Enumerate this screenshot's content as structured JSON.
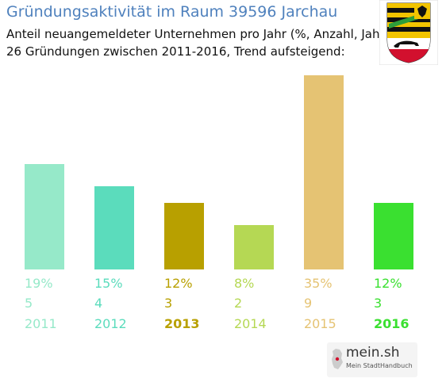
{
  "header": {
    "title": "Gründungsaktivität im Raum 39596 Jarchau",
    "subtitle_line1": "Anteil neuangemeldeter Unternehmen pro Jahr (%, Anzahl, Jahr)",
    "subtitle_line2": "26 Gründungen zwischen 2011-2016, Trend aufsteigend:"
  },
  "coat_of_arms": {
    "icon": "saxony-anhalt-coat-of-arms-icon"
  },
  "chart_data": {
    "type": "bar",
    "categories": [
      "2011",
      "2012",
      "2013",
      "2014",
      "2015",
      "2016"
    ],
    "values": [
      19,
      15,
      12,
      8,
      35,
      12
    ],
    "counts": [
      5,
      4,
      3,
      2,
      9,
      3
    ],
    "percent_labels": [
      "19%",
      "15%",
      "12%",
      "8%",
      "35%",
      "12%"
    ],
    "count_labels": [
      "5",
      "4",
      "3",
      "2",
      "9",
      "3"
    ],
    "colors": [
      "#96e9c9",
      "#5bdcbc",
      "#b8a000",
      "#b5d854",
      "#e5c373",
      "#3ae030"
    ],
    "year_bold": [
      false,
      false,
      true,
      false,
      false,
      true
    ],
    "ylim": [
      0,
      35
    ],
    "grid": false
  },
  "footer": {
    "logo_text": "mein.sh",
    "logo_sub": "Mein StadtHandbuch",
    "logo_icon": "germany-map-icon"
  }
}
